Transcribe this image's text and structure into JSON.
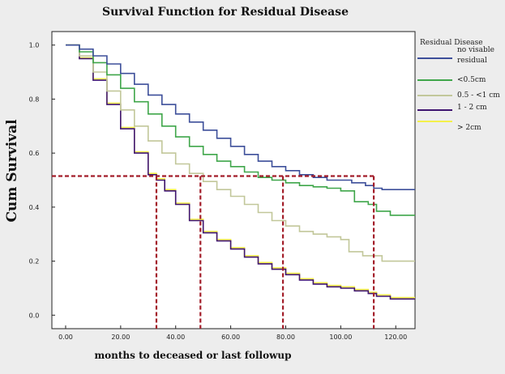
{
  "chart_data": {
    "type": "line",
    "title": "Survival Function for Residual Disease",
    "xlabel": "months to deceased or last followup",
    "ylabel": "Cum Survival",
    "xlim": [
      -5,
      127
    ],
    "ylim": [
      -0.05,
      1.05
    ],
    "x_ticks": [
      0,
      20,
      40,
      60,
      80,
      100,
      120
    ],
    "x_tick_labels": [
      "0.00",
      "20.00",
      "40.00",
      "60.00",
      "80.00",
      "100.00",
      "120.00"
    ],
    "y_ticks": [
      0,
      0.2,
      0.4,
      0.6,
      0.8,
      1.0
    ],
    "y_tick_labels": [
      "0.0",
      "0.2",
      "0.4",
      "0.6",
      "0.8",
      "1.0"
    ],
    "grid": false,
    "legend": {
      "title": "Residual Disease",
      "position": "right"
    },
    "series": [
      {
        "name": "no visable residual",
        "color": "#3d4f9a",
        "points": [
          [
            0,
            1.0
          ],
          [
            5,
            0.985
          ],
          [
            10,
            0.96
          ],
          [
            15,
            0.93
          ],
          [
            20,
            0.895
          ],
          [
            25,
            0.855
          ],
          [
            30,
            0.815
          ],
          [
            35,
            0.78
          ],
          [
            40,
            0.745
          ],
          [
            45,
            0.715
          ],
          [
            50,
            0.685
          ],
          [
            55,
            0.655
          ],
          [
            60,
            0.625
          ],
          [
            65,
            0.595
          ],
          [
            70,
            0.57
          ],
          [
            75,
            0.55
          ],
          [
            80,
            0.535
          ],
          [
            85,
            0.52
          ],
          [
            90,
            0.51
          ],
          [
            95,
            0.5
          ],
          [
            100,
            0.5
          ],
          [
            104,
            0.49
          ],
          [
            109,
            0.48
          ],
          [
            112,
            0.47
          ],
          [
            115,
            0.465
          ],
          [
            127,
            0.465
          ]
        ]
      },
      {
        "name": "<0.5cm",
        "color": "#3fa64a",
        "points": [
          [
            0,
            1.0
          ],
          [
            5,
            0.975
          ],
          [
            10,
            0.935
          ],
          [
            15,
            0.89
          ],
          [
            20,
            0.84
          ],
          [
            25,
            0.79
          ],
          [
            30,
            0.745
          ],
          [
            35,
            0.7
          ],
          [
            40,
            0.66
          ],
          [
            45,
            0.625
          ],
          [
            50,
            0.595
          ],
          [
            55,
            0.57
          ],
          [
            60,
            0.55
          ],
          [
            65,
            0.53
          ],
          [
            70,
            0.51
          ],
          [
            75,
            0.5
          ],
          [
            80,
            0.49
          ],
          [
            85,
            0.48
          ],
          [
            90,
            0.475
          ],
          [
            95,
            0.47
          ],
          [
            100,
            0.46
          ],
          [
            105,
            0.42
          ],
          [
            110,
            0.41
          ],
          [
            113,
            0.385
          ],
          [
            118,
            0.37
          ],
          [
            127,
            0.37
          ]
        ]
      },
      {
        "name": "0.5 - <1 cm",
        "color": "#c2c79a",
        "points": [
          [
            0,
            1.0
          ],
          [
            5,
            0.96
          ],
          [
            10,
            0.9
          ],
          [
            15,
            0.83
          ],
          [
            20,
            0.76
          ],
          [
            25,
            0.7
          ],
          [
            30,
            0.645
          ],
          [
            35,
            0.6
          ],
          [
            40,
            0.56
          ],
          [
            45,
            0.525
          ],
          [
            50,
            0.495
          ],
          [
            55,
            0.465
          ],
          [
            60,
            0.44
          ],
          [
            65,
            0.41
          ],
          [
            70,
            0.38
          ],
          [
            75,
            0.35
          ],
          [
            80,
            0.33
          ],
          [
            85,
            0.31
          ],
          [
            90,
            0.3
          ],
          [
            95,
            0.29
          ],
          [
            100,
            0.28
          ],
          [
            103,
            0.235
          ],
          [
            108,
            0.22
          ],
          [
            115,
            0.2
          ],
          [
            127,
            0.2
          ]
        ]
      },
      {
        "name": "1 - 2 cm",
        "color": "#3f1470",
        "points": [
          [
            0,
            1.0
          ],
          [
            5,
            0.95
          ],
          [
            10,
            0.87
          ],
          [
            15,
            0.78
          ],
          [
            20,
            0.69
          ],
          [
            25,
            0.6
          ],
          [
            30,
            0.52
          ],
          [
            33,
            0.5
          ],
          [
            36,
            0.46
          ],
          [
            40,
            0.41
          ],
          [
            45,
            0.35
          ],
          [
            50,
            0.305
          ],
          [
            55,
            0.275
          ],
          [
            60,
            0.245
          ],
          [
            65,
            0.215
          ],
          [
            70,
            0.19
          ],
          [
            75,
            0.17
          ],
          [
            80,
            0.15
          ],
          [
            85,
            0.13
          ],
          [
            90,
            0.115
          ],
          [
            95,
            0.105
          ],
          [
            100,
            0.1
          ],
          [
            105,
            0.09
          ],
          [
            110,
            0.08
          ],
          [
            113,
            0.07
          ],
          [
            118,
            0.06
          ],
          [
            127,
            0.06
          ]
        ]
      },
      {
        "name": "> 2cm",
        "color": "#f4f04a",
        "points": [
          [
            0,
            1.0
          ],
          [
            5,
            0.953
          ],
          [
            10,
            0.875
          ],
          [
            15,
            0.785
          ],
          [
            20,
            0.695
          ],
          [
            25,
            0.605
          ],
          [
            30,
            0.525
          ],
          [
            33,
            0.505
          ],
          [
            36,
            0.465
          ],
          [
            40,
            0.415
          ],
          [
            45,
            0.355
          ],
          [
            50,
            0.31
          ],
          [
            55,
            0.28
          ],
          [
            60,
            0.25
          ],
          [
            65,
            0.22
          ],
          [
            70,
            0.195
          ],
          [
            75,
            0.175
          ],
          [
            80,
            0.155
          ],
          [
            85,
            0.135
          ],
          [
            90,
            0.12
          ],
          [
            95,
            0.11
          ],
          [
            100,
            0.105
          ],
          [
            105,
            0.095
          ],
          [
            110,
            0.085
          ],
          [
            113,
            0.075
          ],
          [
            118,
            0.065
          ],
          [
            127,
            0.065
          ]
        ]
      }
    ],
    "reference_lines": {
      "color": "#a31e2a",
      "horizontal_y": 0.515,
      "horizontal_x_range": [
        -5,
        112
      ],
      "vertical_x": [
        33,
        49,
        79,
        112
      ]
    }
  }
}
